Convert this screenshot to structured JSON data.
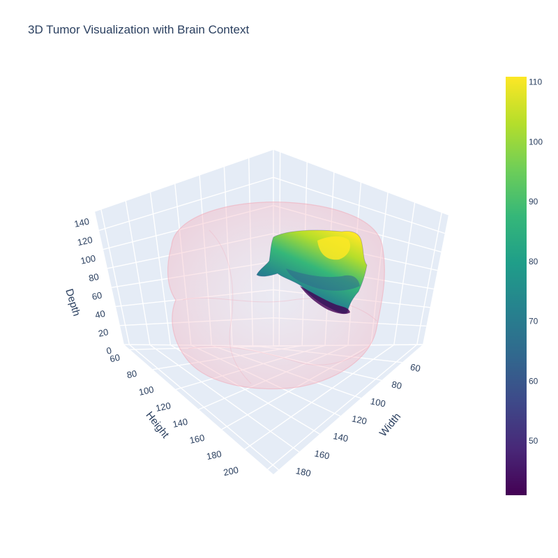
{
  "chart_data": {
    "type": "3d-isosurface",
    "title": "3D Tumor Visualization with Brain Context",
    "axes": {
      "width": {
        "label": "Width",
        "ticks": [
          60,
          80,
          100,
          120,
          140,
          160,
          180
        ]
      },
      "height": {
        "label": "Height",
        "ticks": [
          60,
          80,
          100,
          120,
          140,
          160,
          180,
          200
        ]
      },
      "depth": {
        "label": "Depth",
        "ticks": [
          0,
          20,
          40,
          60,
          80,
          100,
          120,
          140
        ]
      }
    },
    "colorbar": {
      "colorscale": "Viridis",
      "range": [
        41,
        111
      ],
      "ticks": [
        50,
        60,
        70,
        80,
        90,
        100,
        110
      ]
    },
    "colors": {
      "scene_bg": "#e5ecf6",
      "grid": "#ffffff",
      "brain": "#f4b6c2",
      "viridis": [
        "#440154",
        "#482878",
        "#3e4989",
        "#31688e",
        "#26828e",
        "#1f9e89",
        "#35b779",
        "#6ece58",
        "#b5de2b",
        "#fde725"
      ]
    }
  }
}
